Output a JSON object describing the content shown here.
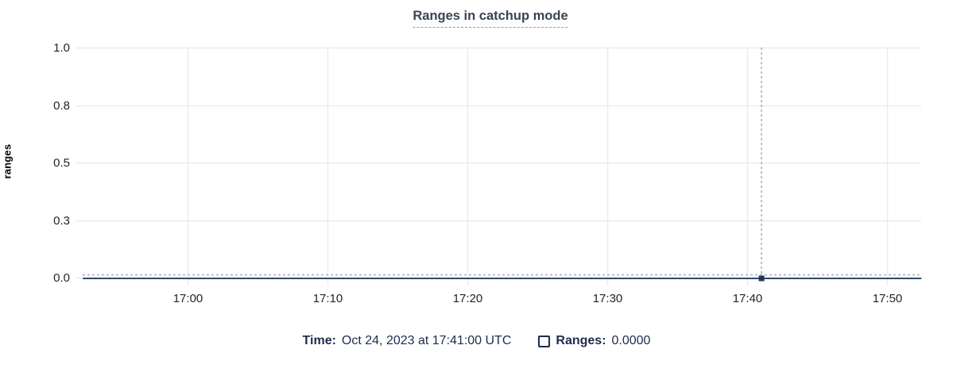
{
  "chart": {
    "title": "Ranges in catchup mode",
    "ylabel": "ranges"
  },
  "chart_data": {
    "type": "line",
    "title": "Ranges in catchup mode",
    "xlabel": "",
    "ylabel": "ranges",
    "ylim": [
      0,
      1
    ],
    "grid": true,
    "legend_position": "bottom",
    "y_ticks": [
      1.0,
      0.75,
      0.5,
      0.25,
      0.0
    ],
    "y_tick_labels": [
      "1.0",
      "0.8",
      "0.5",
      "0.3",
      "0.0"
    ],
    "x_tick_labels": [
      "17:00",
      "17:10",
      "17:20",
      "17:30",
      "17:40",
      "17:50"
    ],
    "x_visible_range": [
      "16:52",
      "17:52"
    ],
    "series": [
      {
        "name": "Ranges",
        "x": [
          "16:52",
          "17:52"
        ],
        "values": [
          0,
          0
        ]
      }
    ],
    "baseline_dashed": true,
    "hover": {
      "x_time": "17:41",
      "time_text": "Oct 24, 2023 at 17:41:00 UTC",
      "value": "0.0000"
    },
    "colors": {
      "series_line": "#334a6d",
      "hover_point": "#243650",
      "baseline_dashed": "#b7c3cf",
      "crosshair": "#93a1b0",
      "grid": "#ececec",
      "title_text": "#394455",
      "legend_text": "#1f2c4d",
      "tick_text": "#242424"
    }
  },
  "legend": {
    "time_label": "Time:",
    "time_value": "Oct 24, 2023 at 17:41:00 UTC",
    "series_label": "Ranges:",
    "series_value": "0.0000",
    "checkbox_checked": false
  }
}
